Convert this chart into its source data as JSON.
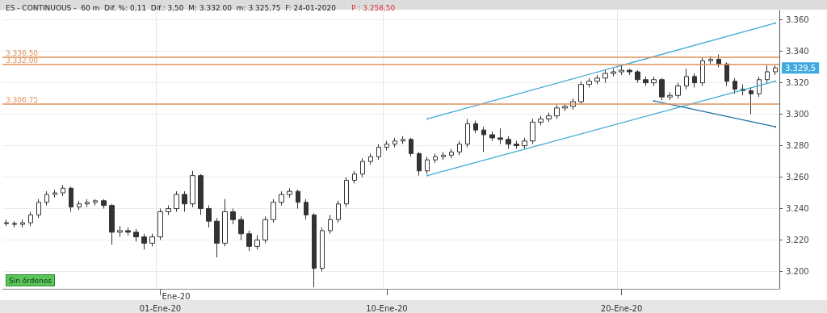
{
  "chart_data": {
    "type": "candlestick",
    "title": "ES - CONTINUOUS -  60 m  Dif. %: 0,11  Dif.: 3,50  M: 3.332.00  m: 3.325,75  F: 24-01-2020",
    "subtitle": "P : 3.258,50",
    "categories": [
      null,
      null,
      null,
      null,
      null,
      null,
      null,
      null,
      null,
      null,
      null,
      null,
      null,
      null,
      null,
      null,
      null,
      null,
      null,
      "01-Ene-20",
      null,
      null,
      null,
      null,
      null,
      null,
      null,
      null,
      null,
      null,
      null,
      null,
      null,
      null,
      null,
      null,
      null,
      null,
      null,
      null,
      null,
      null,
      null,
      null,
      null,
      null,
      null,
      "10-Ene-20",
      null,
      null,
      null,
      null,
      null,
      null,
      null,
      null,
      null,
      null,
      null,
      null,
      null,
      null,
      null,
      null,
      null,
      null,
      null,
      null,
      null,
      null,
      null,
      null,
      null,
      null,
      null,
      null,
      "20-Ene-20",
      null,
      null,
      null,
      null,
      null,
      null,
      null,
      null,
      null,
      null,
      null,
      null,
      null,
      null,
      null,
      null,
      null,
      null,
      null
    ],
    "color": "#333333",
    "ohlc": [
      [
        3231,
        3233,
        3229,
        3230.5
      ],
      [
        3230.5,
        3232,
        3228,
        3230
      ],
      [
        3230,
        3233,
        3228,
        3231
      ],
      [
        3231,
        3238,
        3229,
        3236
      ],
      [
        3236,
        3246,
        3234,
        3244
      ],
      [
        3244,
        3251,
        3242,
        3249
      ],
      [
        3249,
        3252,
        3247,
        3250
      ],
      [
        3250,
        3255,
        3248,
        3253
      ],
      [
        3253,
        3254,
        3238,
        3241
      ],
      [
        3241,
        3245,
        3239,
        3243
      ],
      [
        3243,
        3246,
        3241,
        3244
      ],
      [
        3244,
        3246,
        3242,
        3245
      ],
      [
        3245,
        3246,
        3240,
        3242
      ],
      [
        3242,
        3243,
        3217,
        3225
      ],
      [
        3225,
        3229,
        3222,
        3226
      ],
      [
        3226,
        3228,
        3223,
        3225
      ],
      [
        3225,
        3227,
        3219,
        3222
      ],
      [
        3222,
        3224,
        3214,
        3218
      ],
      [
        3218,
        3224,
        3216,
        3222
      ],
      [
        3222,
        3240,
        3220,
        3238
      ],
      [
        3238,
        3242,
        3236,
        3240
      ],
      [
        3240,
        3251,
        3238,
        3249
      ],
      [
        3249,
        3251,
        3238,
        3243
      ],
      [
        3243,
        3264,
        3241,
        3261
      ],
      [
        3261,
        3262,
        3236,
        3240
      ],
      [
        3240,
        3242,
        3228,
        3232
      ],
      [
        3232,
        3234,
        3209,
        3218
      ],
      [
        3218,
        3246,
        3216,
        3238
      ],
      [
        3238,
        3240,
        3230,
        3233
      ],
      [
        3233,
        3235,
        3220,
        3224
      ],
      [
        3224,
        3226,
        3213,
        3216
      ],
      [
        3216,
        3223,
        3214,
        3220
      ],
      [
        3220,
        3235,
        3218,
        3233
      ],
      [
        3233,
        3246,
        3231,
        3244
      ],
      [
        3244,
        3251,
        3242,
        3249
      ],
      [
        3249,
        3253,
        3247,
        3251
      ],
      [
        3251,
        3252,
        3240,
        3244
      ],
      [
        3244,
        3246,
        3233,
        3236
      ],
      [
        3236,
        3237,
        3190,
        3202
      ],
      [
        3202,
        3228,
        3200,
        3226
      ],
      [
        3226,
        3236,
        3224,
        3233
      ],
      [
        3233,
        3245,
        3231,
        3243
      ],
      [
        3243,
        3260,
        3241,
        3258
      ],
      [
        3258,
        3264,
        3256,
        3262
      ],
      [
        3262,
        3272,
        3260,
        3270
      ],
      [
        3270,
        3275,
        3268,
        3273
      ],
      [
        3273,
        3281,
        3271,
        3279
      ],
      [
        3279,
        3283,
        3277,
        3281
      ],
      [
        3281,
        3285,
        3279,
        3283
      ],
      [
        3283,
        3286,
        3281,
        3284
      ],
      [
        3284,
        3285,
        3273,
        3275
      ],
      [
        3275,
        3276,
        3261,
        3264
      ],
      [
        3264,
        3273,
        3262,
        3271
      ],
      [
        3271,
        3275,
        3269,
        3273
      ],
      [
        3273,
        3276,
        3271,
        3274
      ],
      [
        3274,
        3278,
        3272,
        3276
      ],
      [
        3276,
        3283,
        3274,
        3281
      ],
      [
        3281,
        3297,
        3279,
        3294
      ],
      [
        3294,
        3296,
        3288,
        3290
      ],
      [
        3290,
        3292,
        3276,
        3287
      ],
      [
        3287,
        3289,
        3283,
        3285
      ],
      [
        3285,
        3291,
        3281,
        3284
      ],
      [
        3284,
        3286,
        3278,
        3281
      ],
      [
        3281,
        3283,
        3278,
        3280
      ],
      [
        3280,
        3285,
        3278,
        3283
      ],
      [
        3283,
        3297,
        3281,
        3295
      ],
      [
        3295,
        3299,
        3293,
        3297
      ],
      [
        3297,
        3301,
        3295,
        3299
      ],
      [
        3299,
        3306,
        3297,
        3304
      ],
      [
        3304,
        3307,
        3302,
        3305
      ],
      [
        3305,
        3310,
        3303,
        3308
      ],
      [
        3308,
        3321,
        3306,
        3319
      ],
      [
        3319,
        3323,
        3317,
        3321
      ],
      [
        3321,
        3325,
        3319,
        3323
      ],
      [
        3323,
        3328,
        3320,
        3326
      ],
      [
        3326,
        3329,
        3324,
        3327
      ],
      [
        3327,
        3331,
        3325,
        3328
      ],
      [
        3328,
        3329,
        3325,
        3327
      ],
      [
        3327,
        3328,
        3320,
        3322
      ],
      [
        3322,
        3324,
        3318,
        3320
      ],
      [
        3320,
        3324,
        3318,
        3322
      ],
      [
        3322,
        3323,
        3309,
        3311
      ],
      [
        3311,
        3314,
        3309,
        3312
      ],
      [
        3312,
        3320,
        3310,
        3318
      ],
      [
        3318,
        3329,
        3316,
        3324
      ],
      [
        3324,
        3326,
        3317,
        3320
      ],
      [
        3320,
        3336,
        3318,
        3334
      ],
      [
        3334,
        3337,
        3332,
        3335
      ],
      [
        3335,
        3338,
        3330,
        3332
      ],
      [
        3332,
        3333,
        3318,
        3321
      ],
      [
        3321,
        3323,
        3313,
        3316
      ],
      [
        3316,
        3319,
        3312,
        3315
      ],
      [
        3315,
        3317,
        3300,
        3313
      ],
      [
        3313,
        3324,
        3311,
        3322
      ],
      [
        3322,
        3331,
        3320,
        3327
      ],
      [
        3327,
        3331,
        3325,
        3329.5
      ]
    ],
    "series": [
      {
        "type": "line",
        "color": "#3fa9d6",
        "values": [
          null,
          null,
          null,
          null,
          null,
          null,
          null,
          null,
          null,
          null,
          null,
          null,
          null,
          null,
          null,
          null,
          null,
          null,
          null,
          null,
          null,
          null,
          null,
          null,
          null,
          null,
          null,
          null,
          null,
          null,
          null,
          null,
          null,
          null,
          null,
          null,
          null,
          null,
          null,
          null,
          null,
          null,
          null,
          null,
          null,
          null,
          null,
          null,
          null,
          null,
          null,
          null,
          3297,
          null,
          null,
          null,
          null,
          null,
          null,
          null,
          null,
          null,
          null,
          null,
          null,
          null,
          null,
          null,
          null,
          null,
          null,
          null,
          null,
          null,
          null,
          null,
          null,
          null,
          null,
          null,
          null,
          null,
          null,
          null,
          null,
          null,
          null,
          null,
          null,
          null,
          null,
          null,
          null,
          null,
          null,
          3358
        ]
      },
      {
        "type": "line",
        "color": "#3fa9d6",
        "values": [
          null,
          null,
          null,
          null,
          null,
          null,
          null,
          null,
          null,
          null,
          null,
          null,
          null,
          null,
          null,
          null,
          null,
          null,
          null,
          null,
          null,
          null,
          null,
          null,
          null,
          null,
          null,
          null,
          null,
          null,
          null,
          null,
          null,
          null,
          null,
          null,
          null,
          null,
          null,
          null,
          null,
          null,
          null,
          null,
          null,
          null,
          null,
          null,
          null,
          null,
          null,
          null,
          3261,
          null,
          null,
          null,
          null,
          null,
          null,
          null,
          null,
          null,
          null,
          null,
          null,
          null,
          null,
          null,
          null,
          null,
          null,
          null,
          null,
          null,
          null,
          null,
          null,
          null,
          null,
          null,
          null,
          null,
          null,
          null,
          null,
          null,
          null,
          null,
          null,
          null,
          null,
          null,
          null,
          null,
          null,
          3321
        ]
      },
      {
        "type": "line",
        "color": "#1f6fa8",
        "values": [
          null,
          null,
          null,
          null,
          null,
          null,
          null,
          null,
          null,
          null,
          null,
          null,
          null,
          null,
          null,
          null,
          null,
          null,
          null,
          null,
          null,
          null,
          null,
          null,
          null,
          null,
          null,
          null,
          null,
          null,
          null,
          null,
          null,
          null,
          null,
          null,
          null,
          null,
          null,
          null,
          null,
          null,
          null,
          null,
          null,
          null,
          null,
          null,
          null,
          null,
          null,
          null,
          null,
          null,
          null,
          null,
          null,
          null,
          null,
          null,
          null,
          null,
          null,
          null,
          null,
          null,
          null,
          null,
          null,
          null,
          null,
          null,
          null,
          null,
          null,
          null,
          null,
          null,
          null,
          null,
          3308.5,
          null,
          null,
          null,
          null,
          null,
          null,
          null,
          null,
          null,
          null,
          null,
          null,
          null,
          null,
          3292
        ]
      }
    ],
    "ylim": [
      3189,
      3366
    ],
    "yticks": [
      {
        "value": 3200,
        "label": "3.200"
      },
      {
        "value": 3220,
        "label": "3.220"
      },
      {
        "value": 3240,
        "label": "3.240"
      },
      {
        "value": 3260,
        "label": "3.260"
      },
      {
        "value": 3280,
        "label": "3.280"
      },
      {
        "value": 3300,
        "label": "3.300"
      },
      {
        "value": 3320,
        "label": "3.320"
      },
      {
        "value": 3340,
        "label": "3.340"
      },
      {
        "value": 3360,
        "label": "3.360"
      }
    ],
    "ref_lines": [
      {
        "axis": "y",
        "value": 3336.5,
        "label": "3.336.50",
        "color": "#e0905a"
      },
      {
        "axis": "y",
        "value": 3332,
        "label": "3.332.00",
        "color": "#e0905a"
      },
      {
        "axis": "y",
        "value": 3306.75,
        "label": "3.306.75",
        "color": "#e0905a"
      }
    ],
    "annotations": [
      "3.329,5",
      "Ene-20",
      "Sin órdenes"
    ],
    "grid": true
  }
}
